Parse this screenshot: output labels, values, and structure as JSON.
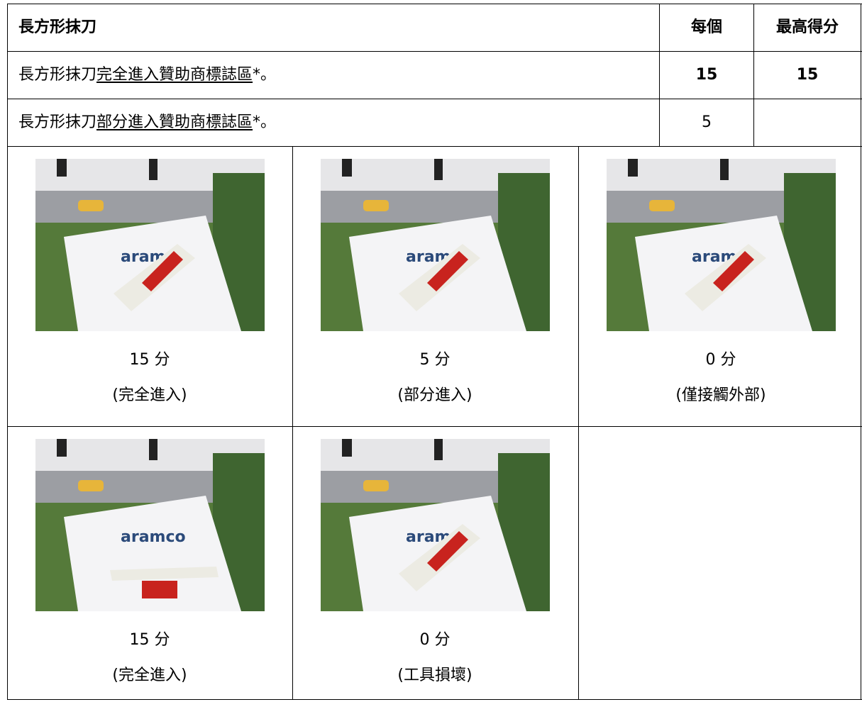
{
  "table": {
    "header": [
      "長方形抹刀",
      "每個",
      "最高得分"
    ],
    "rows": [
      {
        "text": [
          "長方形抹刀",
          "完全進入贊助商標誌區",
          "*。"
        ],
        "each": 15,
        "max": 15
      },
      {
        "text": [
          "長方形抹刀",
          "部分進入贊助商標誌區",
          "*。"
        ],
        "each": 5
      }
    ]
  },
  "photos": [
    {
      "score": "15 分",
      "caption": "(完全進入)"
    },
    {
      "score": "5 分",
      "caption": "(部分進入)"
    },
    {
      "score": "0 分",
      "caption": "(僅接觸外部)"
    },
    {
      "score": "15 分",
      "caption": "(完全進入)"
    },
    {
      "score": "0 分",
      "caption": "(工具損壞)"
    }
  ]
}
